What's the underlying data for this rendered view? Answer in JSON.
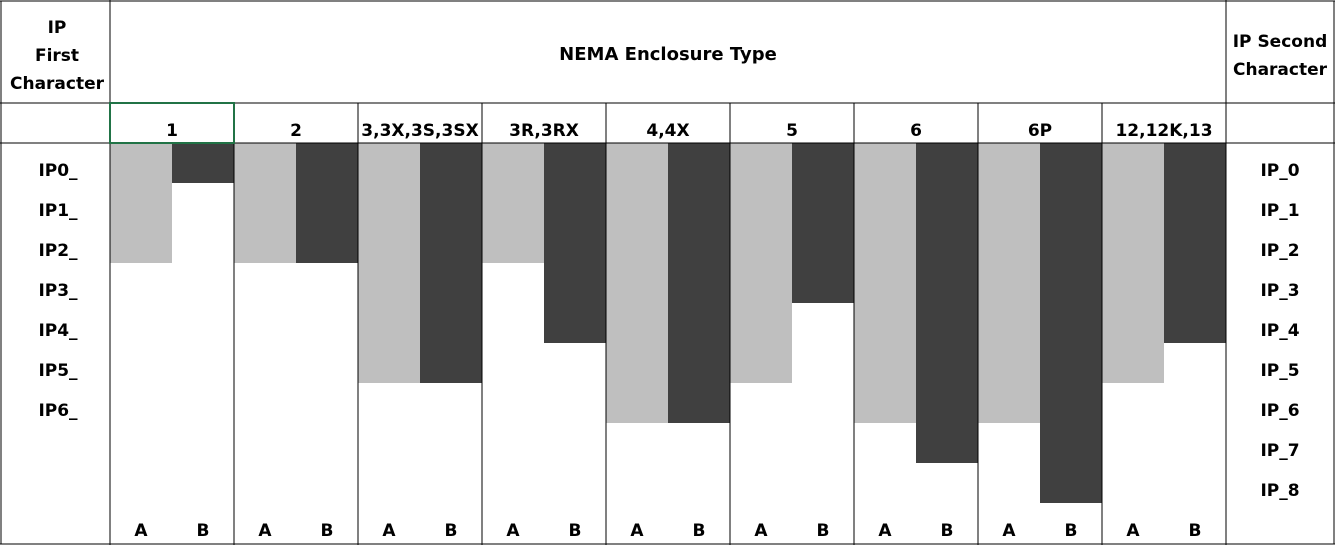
{
  "header": {
    "first_character": [
      "IP",
      "First",
      "Character"
    ],
    "title": "NEMA Enclosure Type",
    "second_character": [
      "IP Second",
      "Character"
    ]
  },
  "first_labels": [
    "IP0_",
    "IP1_",
    "IP2_",
    "IP3_",
    "IP4_",
    "IP5_",
    "IP6_"
  ],
  "second_labels": [
    "IP_0",
    "IP_1",
    "IP_2",
    "IP_3",
    "IP_4",
    "IP_5",
    "IP_6",
    "IP_7",
    "IP_8"
  ],
  "bar_labels": [
    "A",
    "B"
  ],
  "colors": [
    "#bfbfbf",
    "#404040"
  ],
  "columns": [
    {
      "label": "1",
      "values": [
        2,
        0
      ]
    },
    {
      "label": "2",
      "values": [
        2,
        2
      ]
    },
    {
      "label": "3,3X,3S,3SX",
      "values": [
        5,
        5
      ]
    },
    {
      "label": "3R,3RX",
      "values": [
        2,
        4
      ]
    },
    {
      "label": "4,4X",
      "values": [
        6,
        6
      ]
    },
    {
      "label": "5",
      "values": [
        5,
        3
      ]
    },
    {
      "label": "6",
      "values": [
        6,
        7
      ]
    },
    {
      "label": "6P",
      "values": [
        6,
        8
      ]
    },
    {
      "label": "12,12K,13",
      "values": [
        5,
        4
      ]
    }
  ]
}
